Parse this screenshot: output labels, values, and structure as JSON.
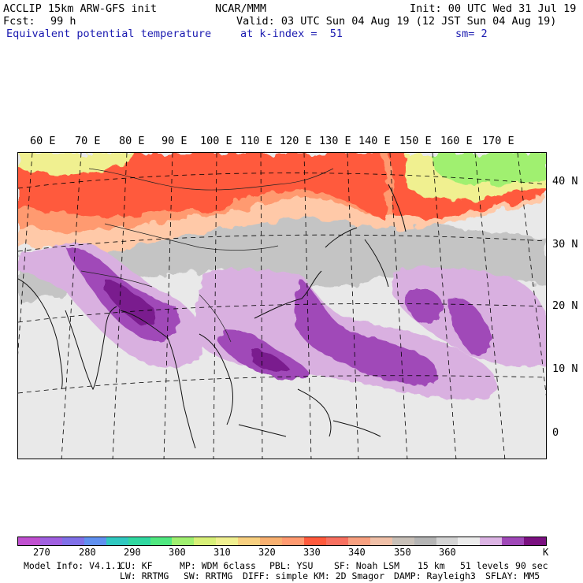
{
  "header": {
    "model": "ACCLIP 15km ARW-GFS init",
    "org": "NCAR/MMM",
    "init": "Init: 00 UTC Wed 31 Jul 19",
    "fcst_label": "Fcst:",
    "fcst_value": "99 h",
    "valid": "Valid: 03 UTC Sun 04 Aug 19 (12 JST Sun 04 Aug 19)",
    "field": "Equivalent potential temperature",
    "level": "at k-index =  51",
    "smooth": "sm= 2"
  },
  "map": {
    "lon_labels": [
      "60 E",
      "70 E",
      "80 E",
      "90 E",
      "100 E",
      "110 E",
      "120 E",
      "130 E",
      "140 E",
      "150 E",
      "160 E",
      "170 E"
    ],
    "lat_labels": [
      "40 N",
      "30 N",
      "20 N",
      "10 N",
      "0"
    ],
    "colors": {
      "warm_high": "#ff5a3c",
      "warm_mid": "#ff9a70",
      "warm_low": "#ffc9a8",
      "gray_dark": "#b4b4b4",
      "gray_mid": "#cfcfcf",
      "gray_light": "#e9e9e9",
      "purple_light": "#d9b0e0",
      "purple_mid": "#a04ab8",
      "purple_dark": "#7a1a8e",
      "green": "#a0f070",
      "yellow": "#f0f090"
    }
  },
  "colorbar": {
    "colors": [
      "#c050d0",
      "#a060e0",
      "#8070e8",
      "#6090f0",
      "#30c8c0",
      "#30d8a0",
      "#50e880",
      "#a0f070",
      "#d8f078",
      "#f0f090",
      "#f8d080",
      "#f8b070",
      "#ff9a70",
      "#ff5a3c",
      "#f87060",
      "#f8a080",
      "#f0c0a8",
      "#c8c0b8",
      "#b4b4b4",
      "#d4d4d4",
      "#ececec",
      "#dcb4e4",
      "#a048b8",
      "#7a1080"
    ],
    "ticks": [
      "270",
      "280",
      "290",
      "300",
      "310",
      "320",
      "330",
      "340",
      "350",
      "360"
    ],
    "unit": "K"
  },
  "footer": {
    "line1": [
      "Model Info: V4.1.1",
      "CU: KF",
      "MP: WDM 6class",
      "PBL: YSU",
      "SF: Noah LSM",
      "15 km",
      "51 levels",
      "90 sec"
    ],
    "line2": [
      "LW: RRTMG",
      "SW: RRTMG",
      "DIFF: simple",
      "KM: 2D Smagor",
      "DAMP: Rayleigh3",
      "SFLAY: MM5"
    ]
  }
}
